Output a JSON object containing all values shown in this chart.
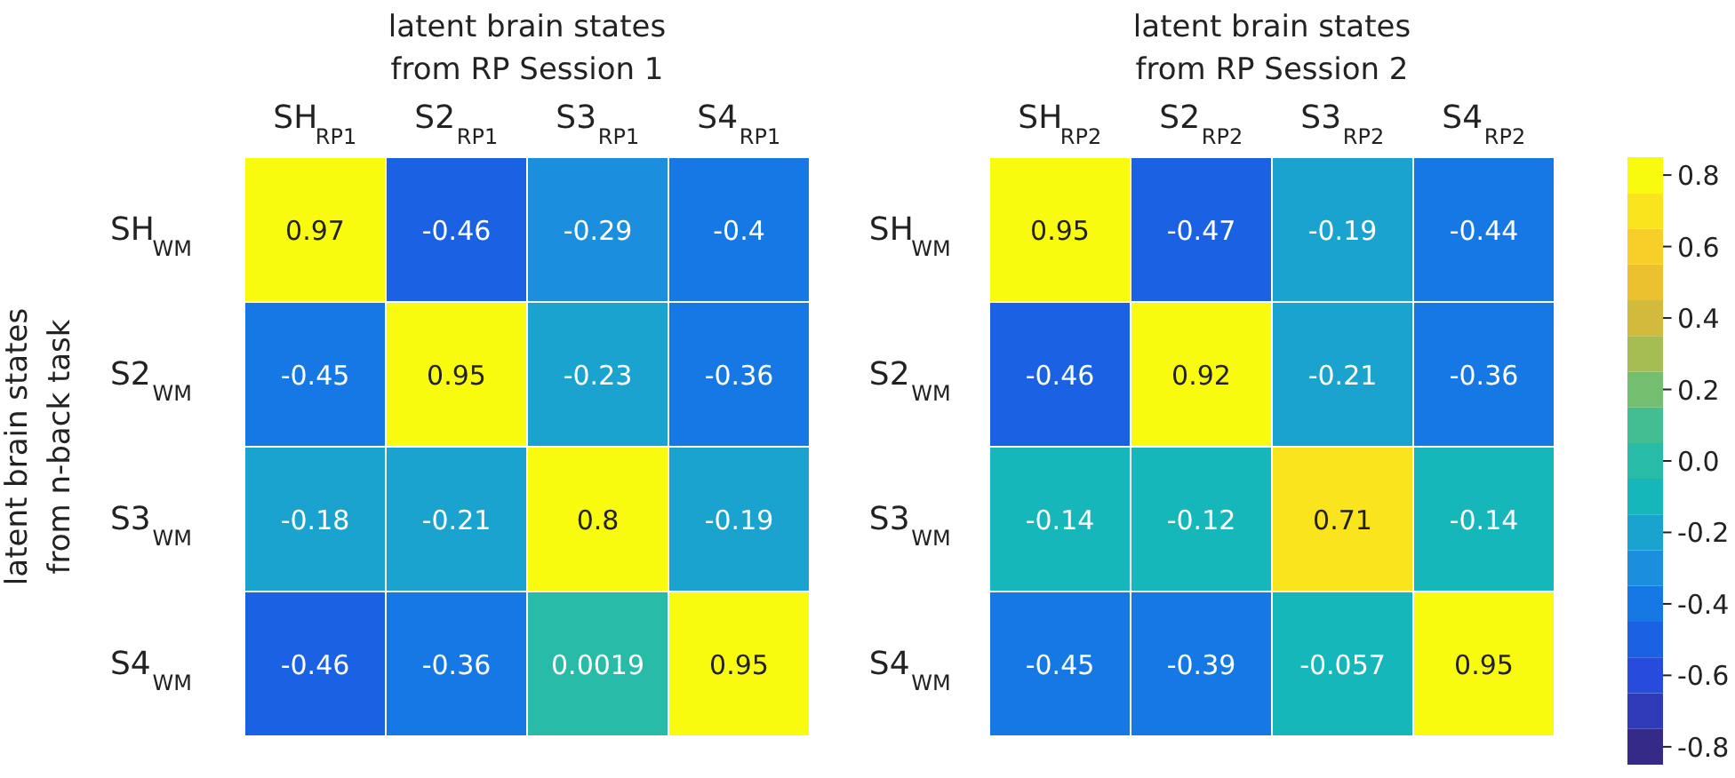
{
  "chart_data": [
    {
      "type": "heatmap",
      "title": "latent brain states\nfrom RP Session 1",
      "ylabel": "latent brain states\nfrom n-back task",
      "categories": [
        "SH$_{RP1}$",
        "S2$_{RP1}$",
        "S3$_{RP1}$",
        "S4$_{RP1}$"
      ],
      "y_categories": [
        "SH$_{WM}$",
        "S2$_{WM}$",
        "S3$_{WM}$",
        "S4$_{WM}$"
      ],
      "cells": [
        [
          0.97,
          -0.46,
          -0.29,
          -0.4
        ],
        [
          -0.45,
          0.95,
          -0.23,
          -0.36
        ],
        [
          -0.18,
          -0.21,
          0.8,
          -0.19
        ],
        [
          -0.46,
          -0.36,
          0.0019,
          0.95
        ]
      ],
      "data_labels": true
    },
    {
      "type": "heatmap",
      "title": "latent brain states\nfrom RP Session 2",
      "categories": [
        "SH$_{RP2}$",
        "S2$_{RP2}$",
        "S3$_{RP2}$",
        "S4$_{RP2}$"
      ],
      "y_categories": [
        "SH$_{WM}$",
        "S2$_{WM}$",
        "S3$_{WM}$",
        "S4$_{WM}$"
      ],
      "cells": [
        [
          0.95,
          -0.47,
          -0.19,
          -0.44
        ],
        [
          -0.46,
          0.92,
          -0.21,
          -0.36
        ],
        [
          -0.14,
          -0.12,
          0.71,
          -0.14
        ],
        [
          -0.45,
          -0.39,
          -0.057,
          0.95
        ]
      ],
      "clim": [
        -0.85,
        0.85
      ],
      "cticks": [
        0.8,
        0.6,
        0.4,
        0.2,
        {
          "value": 0,
          "label": "0.0"
        },
        -0.2,
        -0.4,
        -0.6,
        -0.8
      ],
      "data_labels": true
    }
  ]
}
